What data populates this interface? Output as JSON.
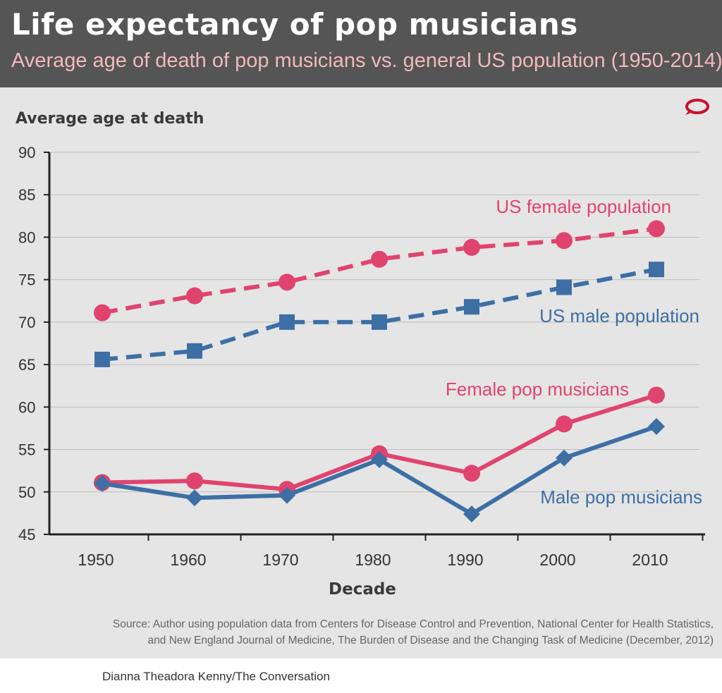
{
  "header": {
    "title": "Life expectancy of pop musicians",
    "subtitle": "Average age of death of pop musicians vs. general US population (1950-2014)"
  },
  "chart_data": {
    "type": "line",
    "ylabel": "Average age at death",
    "xlabel": "Decade",
    "categories": [
      "1950",
      "1960",
      "1970",
      "1980",
      "1990",
      "2000",
      "2010"
    ],
    "ylim": [
      45,
      90
    ],
    "yticks": [
      "45",
      "50",
      "55",
      "60",
      "65",
      "70",
      "75",
      "80",
      "85",
      "90"
    ],
    "grid": true,
    "series": [
      {
        "name": "US female population",
        "values": [
          71.1,
          73.1,
          74.7,
          77.4,
          78.8,
          79.6,
          81.0
        ],
        "color": "#e0446e",
        "dash": true,
        "marker": "circle"
      },
      {
        "name": "US male population",
        "values": [
          65.6,
          66.6,
          70.0,
          70.0,
          71.8,
          74.1,
          76.2
        ],
        "color": "#3d6fa5",
        "dash": true,
        "marker": "square"
      },
      {
        "name": "Female pop musicians",
        "values": [
          51.1,
          51.3,
          50.3,
          54.5,
          52.2,
          58.0,
          61.4
        ],
        "color": "#e0446e",
        "dash": false,
        "marker": "circle"
      },
      {
        "name": "Male pop musicians",
        "values": [
          51.0,
          49.3,
          49.6,
          53.8,
          47.4,
          54.0,
          57.7
        ],
        "color": "#3d6fa5",
        "dash": false,
        "marker": "diamond"
      }
    ]
  },
  "footer": {
    "source_line1": "Source: Author using population data from Centers for Disease Control and Prevention, National Center for Health Statistics,",
    "source_line2": "and New England Journal of Medicine, The Burden of Disease and the Changing Task of Medicine (December, 2012)",
    "credit": "Dianna Theadora Kenny/The Conversation"
  },
  "colors": {
    "header_bg": "#555555",
    "panel_bg": "#e5e5e5",
    "brand_red": "#c8102e"
  },
  "icons": {
    "logo": "conversation-speech-bubble-icon"
  }
}
